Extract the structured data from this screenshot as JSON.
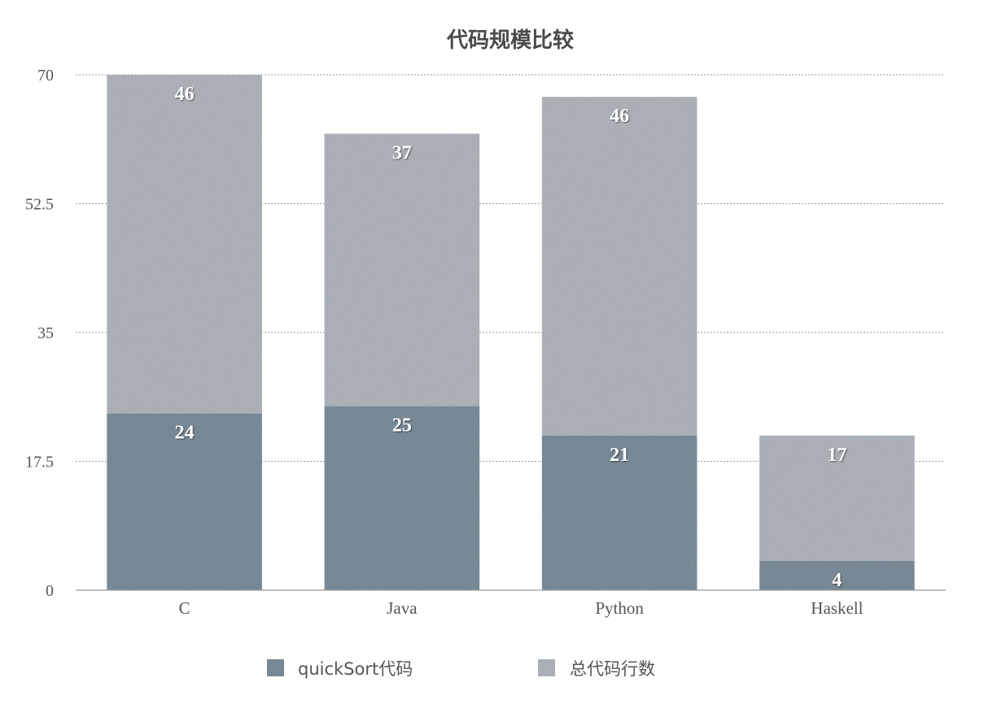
{
  "chart_data": {
    "type": "bar",
    "stacked": true,
    "title": "代码规模比较",
    "categories": [
      "C",
      "Java",
      "Python",
      "Haskell"
    ],
    "series": [
      {
        "name": "quickSort代码",
        "values": [
          24,
          25,
          21,
          4
        ],
        "color": "#6e8291"
      },
      {
        "name": "总代码行数",
        "values": [
          46,
          37,
          46,
          17
        ],
        "color": "#a9aeb5"
      }
    ],
    "ylim": [
      0,
      70
    ],
    "yticks": [
      0,
      17.5,
      35,
      52.5,
      70
    ],
    "ytick_labels": [
      "0",
      "17.5",
      "35",
      "52.5",
      "70"
    ],
    "grid": true,
    "legend_position": "bottom"
  }
}
